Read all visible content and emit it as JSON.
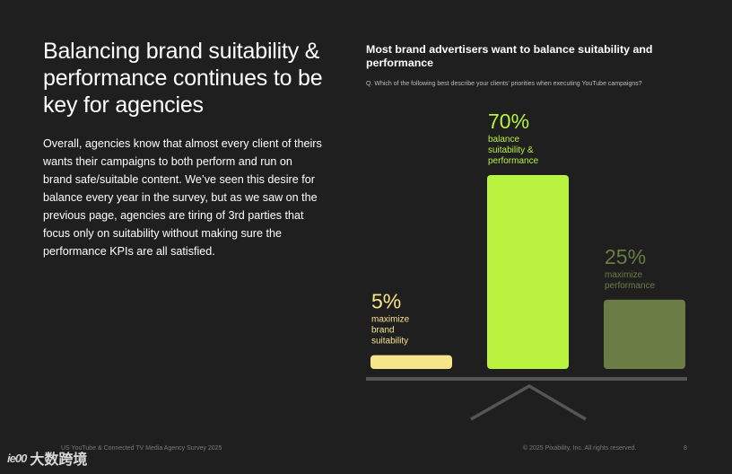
{
  "headline": "Balancing brand suitability & performance continues to be key for agencies",
  "body": "Overall, agencies know that almost every client of theirs wants their campaigns to both perform and run on brand safe/suitable content. We’ve seen this desire for balance every year in the survey, but as we saw on the previous page, agencies are tiring of 3rd parties that focus only on suitability without making sure the performance KPIs are all satisfied.",
  "chart_data": {
    "type": "bar",
    "title": "Most brand advertisers want to balance suitability and performance",
    "subtitle": "Q. Which of the following best describe your clients’ priorities when executing YouTube campaigns?",
    "categories": [
      "maximize brand suitability",
      "balance suitability & performance",
      "maximize performance"
    ],
    "values": [
      5,
      70,
      25
    ],
    "value_labels": [
      "5%",
      "70%",
      "25%"
    ],
    "category_label_lines": [
      [
        "maximize",
        "brand",
        "suitability"
      ],
      [
        "balance",
        "suitability &",
        "performance"
      ],
      [
        "maximize",
        "performance"
      ]
    ],
    "colors": [
      "#f7e58b",
      "#b9f23f",
      "#6b7c45"
    ],
    "ylim": [
      0,
      70
    ],
    "grid": false,
    "legend": "none"
  },
  "footer": {
    "left": "US YouTube & Connected TV Media Agency Survey 2025",
    "right": "© 2025 Pixability, Inc. All rights reserved.",
    "page": "8"
  },
  "watermark": {
    "mark": "ie00",
    "text": "大数跨境"
  },
  "colors": {
    "background": "#1f1f1f",
    "scale_base": "#555555"
  }
}
